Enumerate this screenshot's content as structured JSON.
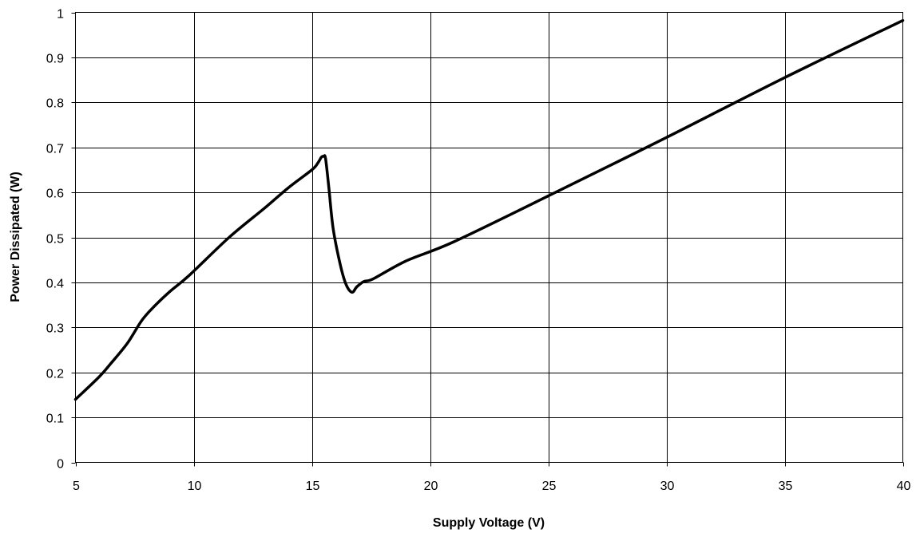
{
  "chart_data": {
    "type": "line",
    "title": "",
    "xlabel": "Supply Voltage (V)",
    "ylabel": "Power Dissipated (W)",
    "xlim": [
      5,
      40
    ],
    "ylim": [
      0,
      1
    ],
    "x_ticks": [
      5,
      10,
      15,
      20,
      25,
      30,
      35,
      40
    ],
    "y_ticks": [
      0,
      0.1,
      0.2,
      0.3,
      0.4,
      0.5,
      0.6,
      0.7,
      0.8,
      0.9,
      1
    ],
    "x_tick_labels": [
      "5",
      "10",
      "15",
      "20",
      "25",
      "30",
      "35",
      "40"
    ],
    "y_tick_labels": [
      "0",
      "0.1",
      "0.2",
      "0.3",
      "0.4",
      "0.5",
      "0.6",
      "0.7",
      "0.8",
      "0.9",
      "1"
    ],
    "grid": true,
    "legend": "none",
    "line_color": "#000000",
    "series": [
      {
        "x": [
          5,
          6,
          6.5,
          7.2,
          7.8,
          8.3,
          9.0,
          9.8,
          11.5,
          13.0,
          14.0,
          15.0,
          15.25,
          15.4,
          15.5,
          15.58,
          15.72,
          15.9,
          16.2,
          16.45,
          16.7,
          16.9,
          17.2,
          17.6,
          19.0,
          21.0,
          25.0,
          30.0,
          35.0,
          40.0
        ],
        "y": [
          0.14,
          0.19,
          0.22,
          0.265,
          0.315,
          0.345,
          0.38,
          0.415,
          0.5,
          0.565,
          0.61,
          0.65,
          0.665,
          0.678,
          0.68,
          0.675,
          0.61,
          0.52,
          0.44,
          0.395,
          0.378,
          0.39,
          0.402,
          0.408,
          0.448,
          0.49,
          0.592,
          0.722,
          0.855,
          0.982
        ]
      }
    ]
  }
}
